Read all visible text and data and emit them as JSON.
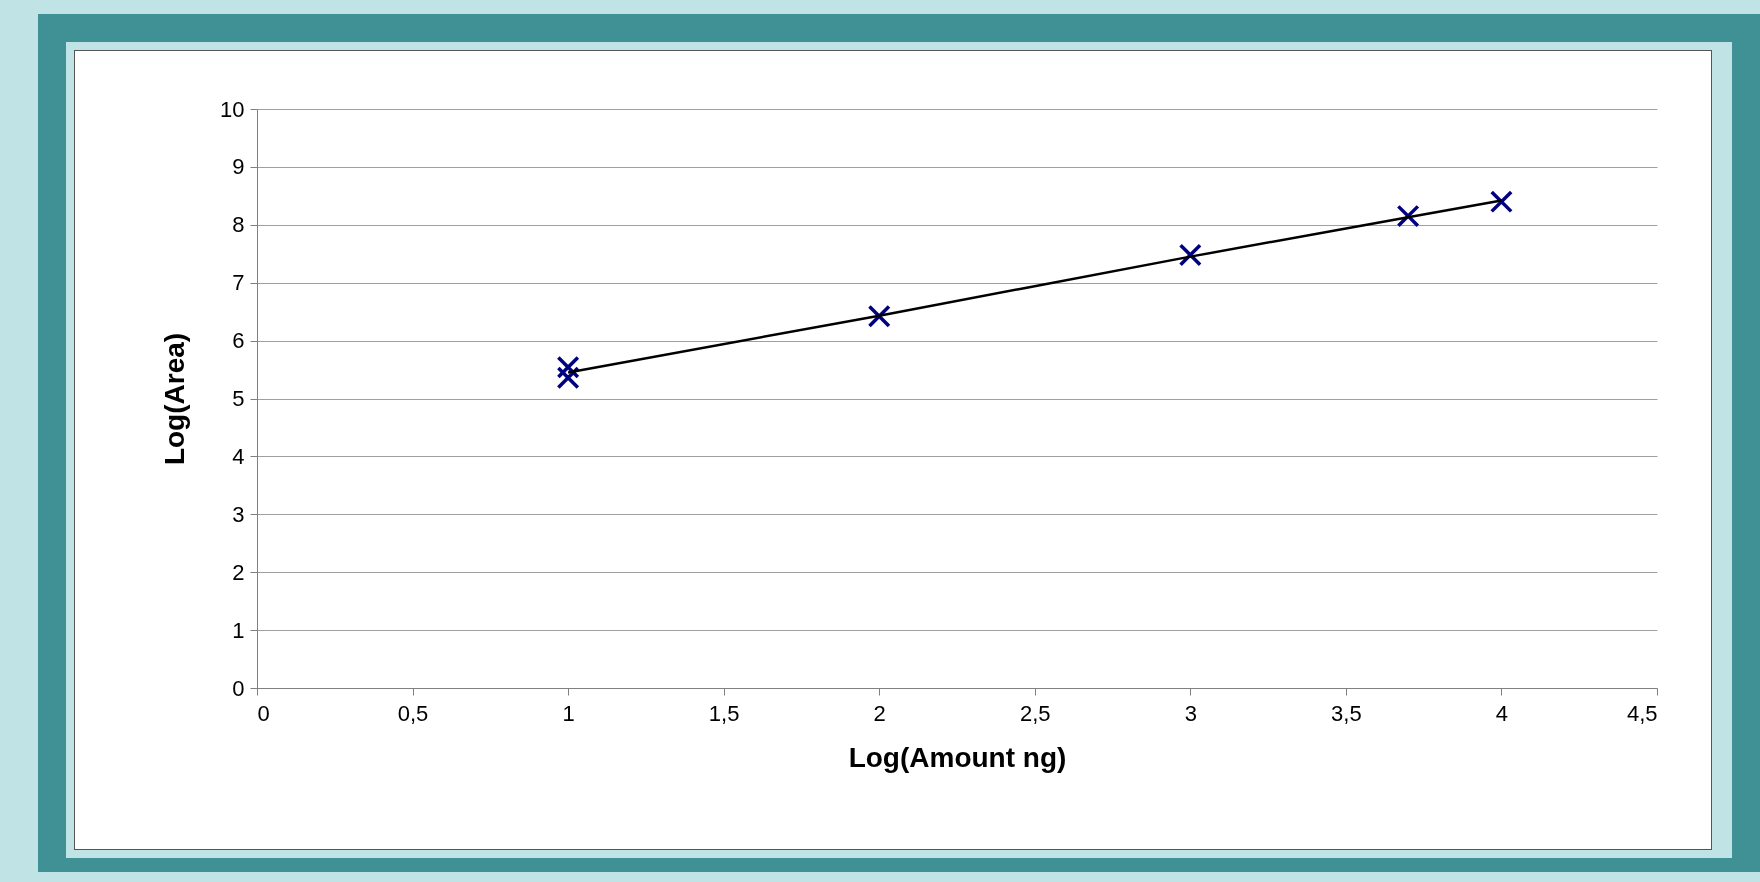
{
  "chart_data": {
    "type": "scatter",
    "xlabel": "Log(Amount ng)",
    "ylabel": "Log(Area)",
    "xlim": [
      0,
      4.5
    ],
    "xticks": [
      0,
      {
        "value": 0.5,
        "label": "0,5"
      },
      1,
      {
        "value": 1.5,
        "label": "1,5"
      },
      2,
      {
        "value": 2.5,
        "label": "2,5"
      },
      3,
      {
        "value": 3.5,
        "label": "3,5"
      },
      4,
      {
        "value": 4.5,
        "label": "4,5"
      }
    ],
    "ylim": [
      0,
      10
    ],
    "yticks": [
      0,
      1,
      2,
      3,
      4,
      5,
      6,
      7,
      8,
      9,
      10
    ],
    "grid": "y",
    "marker": "cross",
    "series": [
      {
        "color": "#000080",
        "x": [
          1,
          1,
          2,
          3,
          3.7,
          4
        ],
        "values": [
          5.54,
          5.36,
          6.42,
          7.48,
          8.15,
          8.4
        ]
      },
      {
        "type": "line",
        "color": "#000000",
        "marker": "none",
        "x": [
          1,
          2,
          3,
          3.7,
          4
        ],
        "values": [
          5.45,
          6.43,
          7.45,
          8.13,
          8.42
        ]
      }
    ]
  }
}
